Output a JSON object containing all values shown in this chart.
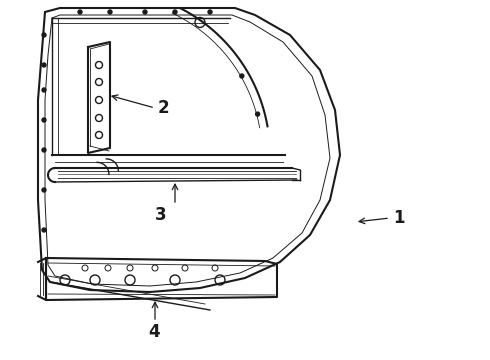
{
  "bg_color": "#ffffff",
  "line_color": "#1a1a1a",
  "label_1": "1",
  "label_2": "2",
  "label_3": "3",
  "label_4": "4",
  "label_fontsize": 12,
  "figsize": [
    4.9,
    3.6
  ],
  "dpi": 100
}
